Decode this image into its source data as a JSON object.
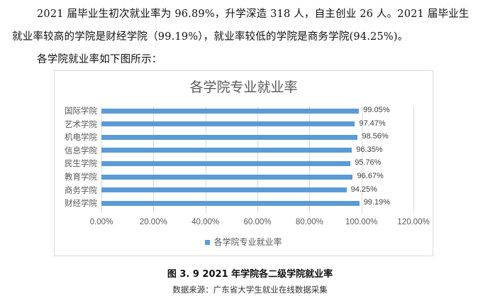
{
  "document": {
    "paragraph_line1": "2021 届毕业生初次就业率为 96.89%，升学深造 318 人，自主创业 26 人。2021 届毕业生",
    "paragraph_line2": "就业率较高的学院是财经学院（99.19%），就业率较低的学院是商务学院(94.25%)。",
    "paragraph_line3": "各学院就业率如下图所示：",
    "figure_caption": "图 3. 9 2021 年学院各二级学院就业率",
    "data_source": "数据来源：广东省大学生就业在线数据采集"
  },
  "colors": {
    "bar": "#5b9bd5",
    "gridline": "#d9d9d9",
    "text_gray": "#595959"
  },
  "chart_data": {
    "type": "bar",
    "orientation": "horizontal",
    "title": "各学院专业就业率",
    "categories": [
      "国际学院",
      "艺术学院",
      "机电学院",
      "信息学院",
      "民生学院",
      "教育学院",
      "商务学院",
      "财经学院"
    ],
    "series": [
      {
        "name": "各学院专业就业率",
        "values": [
          99.05,
          97.47,
          98.56,
          96.35,
          95.76,
          96.67,
          94.25,
          99.19
        ],
        "labels": [
          "99.05%",
          "97.47%",
          "98.56%",
          "96.35%",
          "95.76%",
          "96.67%",
          "94.25%",
          "99.19%"
        ]
      }
    ],
    "xlabel": "",
    "ylabel": "",
    "xlim": [
      0,
      120
    ],
    "x_ticks": [
      "0.00%",
      "20.00%",
      "40.00%",
      "60.00%",
      "80.00%",
      "100.00%",
      "120.00%"
    ],
    "grid": "vertical",
    "legend_position": "bottom"
  }
}
